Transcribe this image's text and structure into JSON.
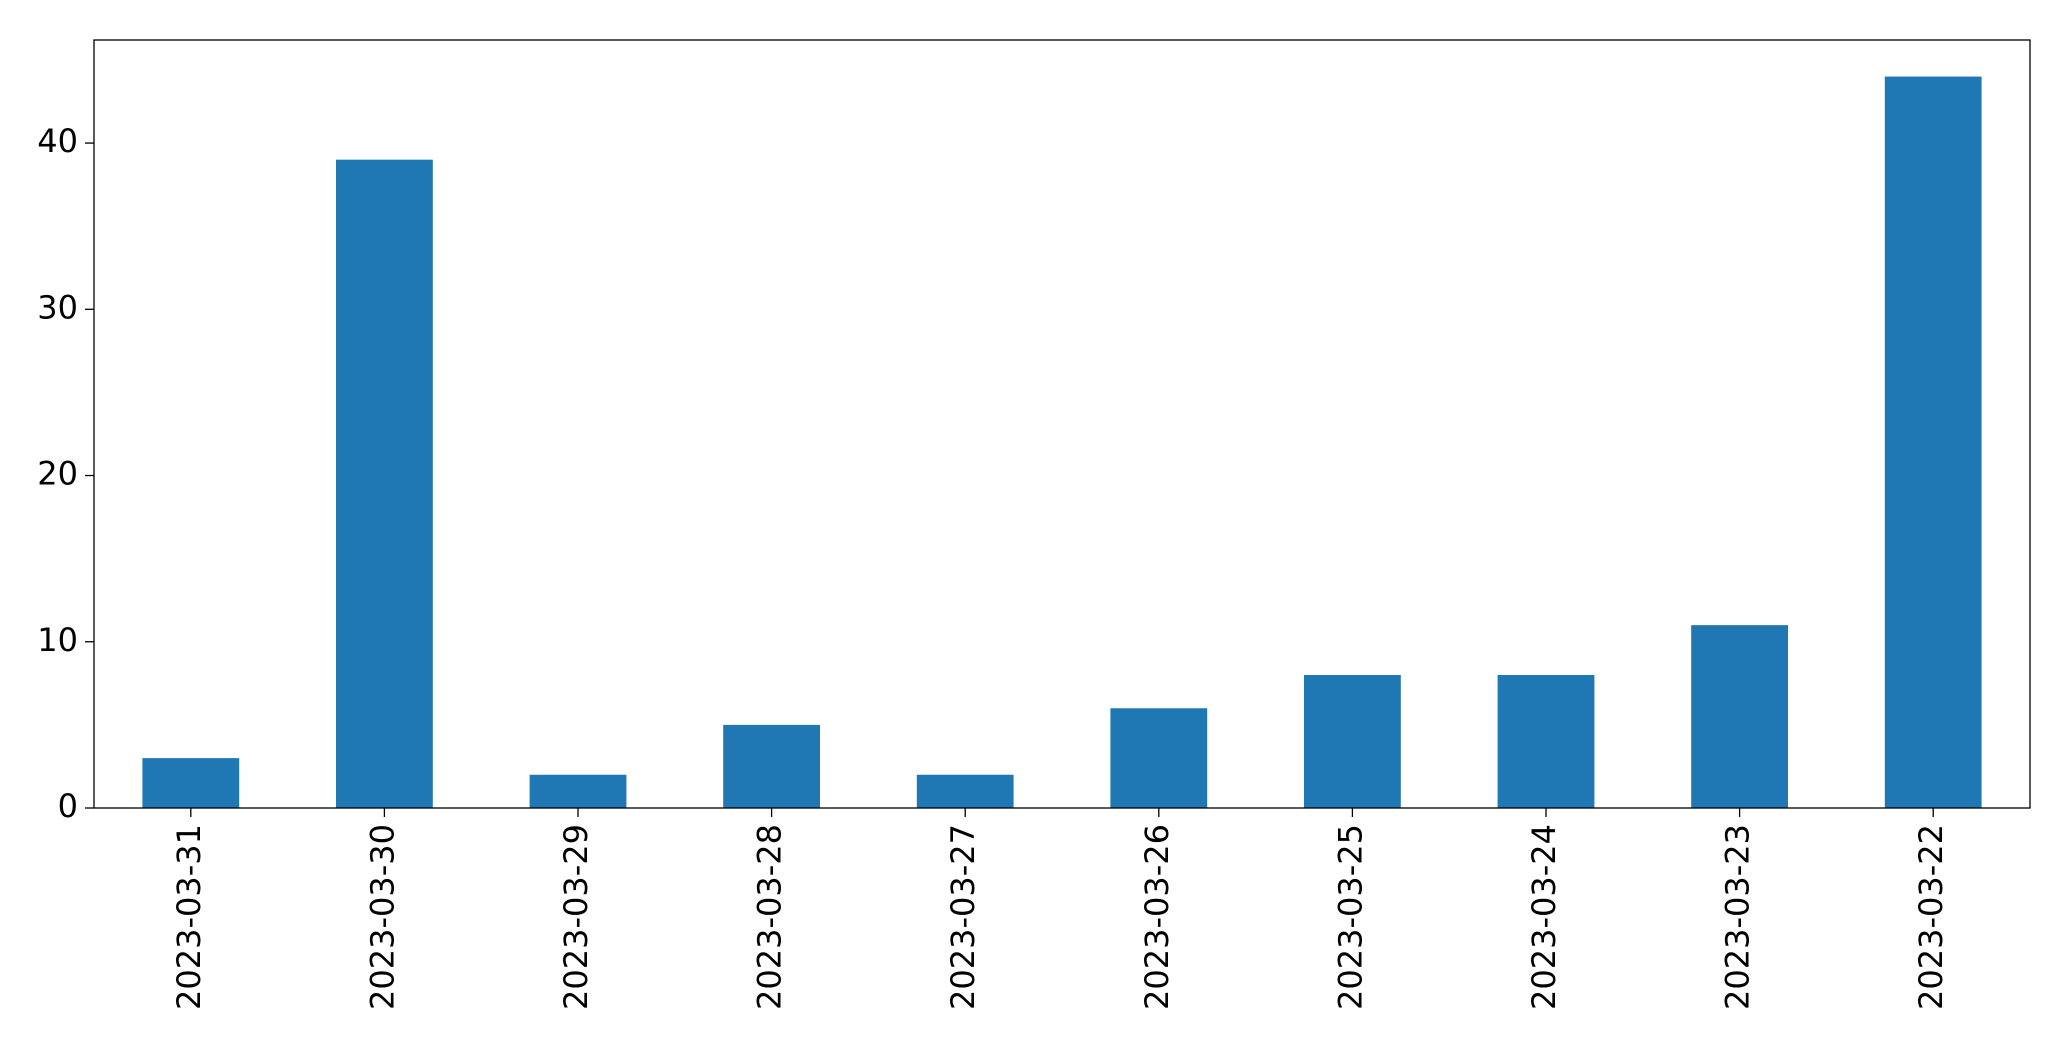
{
  "chart_data": {
    "type": "bar",
    "categories": [
      "2023-03-31",
      "2023-03-30",
      "2023-03-29",
      "2023-03-28",
      "2023-03-27",
      "2023-03-26",
      "2023-03-25",
      "2023-03-24",
      "2023-03-23",
      "2023-03-22"
    ],
    "values": [
      3,
      39,
      2,
      5,
      2,
      6,
      8,
      8,
      11,
      44
    ],
    "color": "#1f77b4",
    "ylim": [
      0,
      46.2
    ],
    "yticks": [
      0,
      10,
      20,
      30,
      40
    ],
    "grid": false
  }
}
